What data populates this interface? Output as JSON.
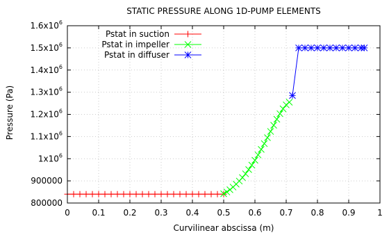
{
  "chart_data": {
    "type": "line",
    "title": "STATIC PRESSURE ALONG 1D-PUMP ELEMENTS",
    "xlabel": "Curvilinear abscissa (m)",
    "ylabel": "Pressure (Pa)",
    "xlim": [
      0,
      1
    ],
    "ylim": [
      800000,
      1600000
    ],
    "grid": true,
    "legend_position": "top-left",
    "x_ticks": [
      {
        "value": 0,
        "label": "0"
      },
      {
        "value": 0.1,
        "label": "0.1"
      },
      {
        "value": 0.2,
        "label": "0.2"
      },
      {
        "value": 0.3,
        "label": "0.3"
      },
      {
        "value": 0.4,
        "label": "0.4"
      },
      {
        "value": 0.5,
        "label": "0.5"
      },
      {
        "value": 0.6,
        "label": "0.6"
      },
      {
        "value": 0.7,
        "label": "0.7"
      },
      {
        "value": 0.8,
        "label": "0.8"
      },
      {
        "value": 0.9,
        "label": "0.9"
      },
      {
        "value": 1,
        "label": "1"
      }
    ],
    "y_ticks": [
      {
        "value": 800000,
        "label": "800000",
        "exp": ""
      },
      {
        "value": 900000,
        "label": "900000",
        "exp": ""
      },
      {
        "value": 1000000,
        "label": "1x10",
        "exp": "6"
      },
      {
        "value": 1100000,
        "label": "1.1x10",
        "exp": "6"
      },
      {
        "value": 1200000,
        "label": "1.2x10",
        "exp": "6"
      },
      {
        "value": 1300000,
        "label": "1.3x10",
        "exp": "6"
      },
      {
        "value": 1400000,
        "label": "1.4x10",
        "exp": "6"
      },
      {
        "value": 1500000,
        "label": "1.5x10",
        "exp": "6"
      },
      {
        "value": 1600000,
        "label": "1.6x10",
        "exp": "6"
      }
    ],
    "series": [
      {
        "name": "Pstat in suction",
        "color": "#ff0000",
        "marker": "plus",
        "x": [
          0,
          0.02,
          0.04,
          0.06,
          0.08,
          0.1,
          0.12,
          0.14,
          0.16,
          0.18,
          0.2,
          0.22,
          0.24,
          0.26,
          0.28,
          0.3,
          0.32,
          0.34,
          0.36,
          0.38,
          0.4,
          0.42,
          0.44,
          0.46,
          0.48,
          0.5
        ],
        "y": [
          840000,
          840000,
          840000,
          840000,
          840000,
          840000,
          840000,
          840000,
          840000,
          840000,
          840000,
          840000,
          840000,
          840000,
          840000,
          840000,
          840000,
          840000,
          840000,
          840000,
          840000,
          840000,
          840000,
          840000,
          840000,
          840000
        ]
      },
      {
        "name": "Pstat in impeller",
        "color": "#00ff00",
        "marker": "cross",
        "x": [
          0.5,
          0.51,
          0.52,
          0.53,
          0.54,
          0.55,
          0.56,
          0.57,
          0.58,
          0.59,
          0.6,
          0.61,
          0.62,
          0.63,
          0.64,
          0.65,
          0.66,
          0.67,
          0.68,
          0.69,
          0.7,
          0.71
        ],
        "y": [
          842000,
          850000,
          860000,
          872000,
          885000,
          899000,
          915000,
          932000,
          951000,
          971000,
          993000,
          1017000,
          1042000,
          1068000,
          1095000,
          1123000,
          1151000,
          1178000,
          1203000,
          1225000,
          1243000,
          1255000
        ]
      },
      {
        "name": "Pstat in diffuser",
        "color": "#0000ff",
        "marker": "star",
        "x": [
          0.72,
          0.74,
          0.76,
          0.78,
          0.8,
          0.82,
          0.84,
          0.86,
          0.88,
          0.9,
          0.92,
          0.94,
          0.95
        ],
        "y": [
          1285000,
          1500000,
          1500000,
          1500000,
          1500000,
          1500000,
          1500000,
          1500000,
          1500000,
          1500000,
          1500000,
          1500000,
          1500000
        ]
      }
    ]
  }
}
